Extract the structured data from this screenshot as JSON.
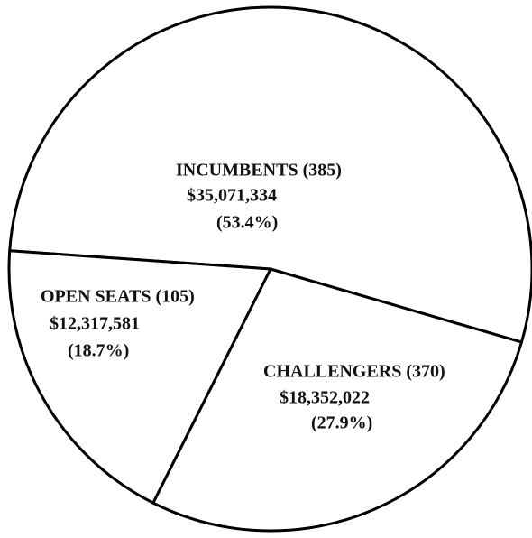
{
  "chart_data": {
    "type": "pie",
    "categories": [
      "INCUMBENTS (385)",
      "CHALLENGERS (370)",
      "OPEN SEATS (105)"
    ],
    "amounts": [
      "$35,071,334",
      "$18,352,022",
      "$12,317,581"
    ],
    "values": [
      53.4,
      27.9,
      18.7
    ],
    "value_labels": [
      "(53.4%)",
      "(27.9%)",
      "(18.7%)"
    ],
    "color": "#ffffff"
  }
}
